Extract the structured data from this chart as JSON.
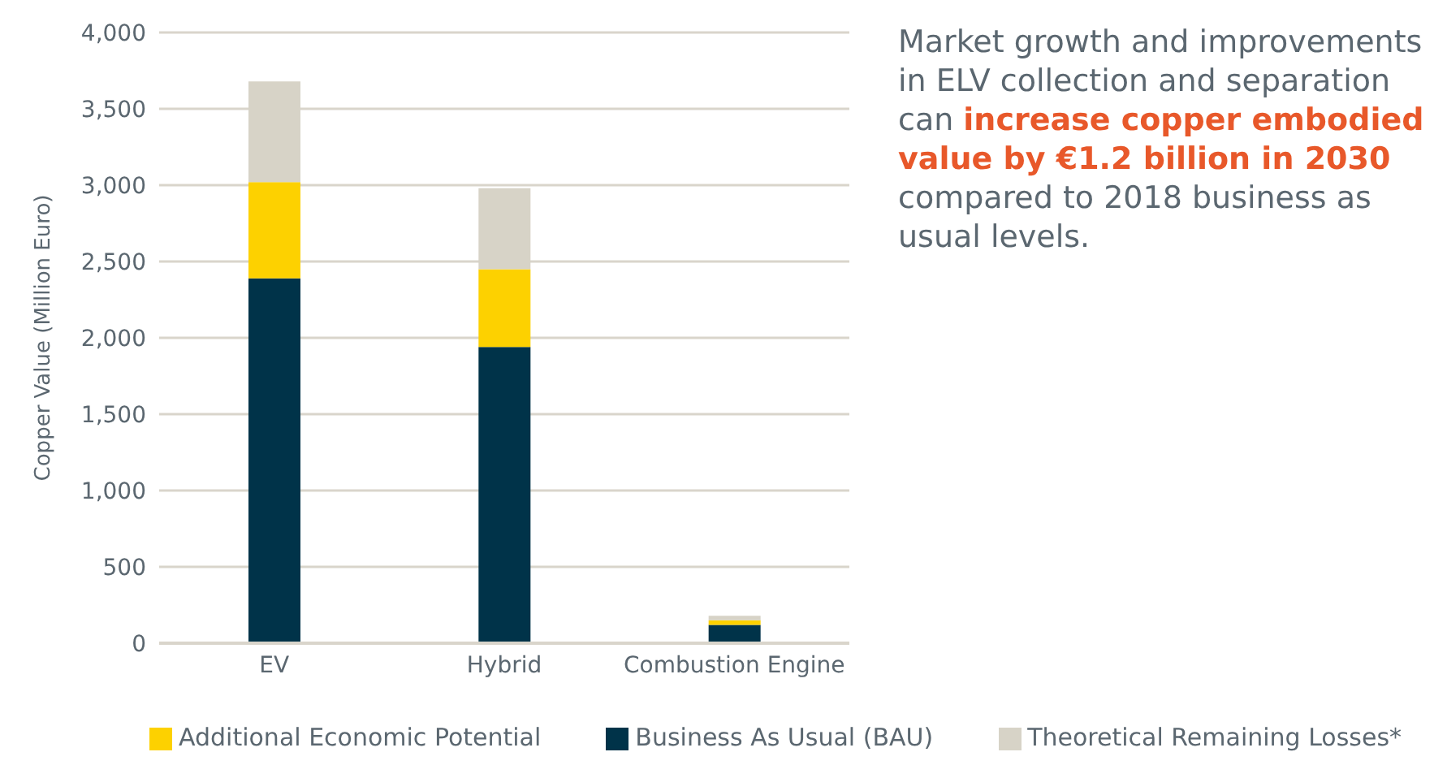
{
  "chart_data": {
    "type": "bar",
    "stacked": true,
    "ylabel": "Copper Value (Million Euro)",
    "categories": [
      "EV",
      "Hybrid",
      "Combustion Engine"
    ],
    "series": [
      {
        "name": "Business As Usual (BAU)",
        "color": "#003349",
        "values": [
          2390,
          1940,
          120
        ]
      },
      {
        "name": "Additional Economic Potential",
        "color": "#fdd100",
        "values": [
          630,
          510,
          30
        ]
      },
      {
        "name": "Theoretical Remaining Losses*",
        "color": "#d7d3c7",
        "values": [
          660,
          530,
          30
        ]
      }
    ],
    "ylim": [
      0,
      4000
    ],
    "yticks": [
      0,
      500,
      {
        "value": 1000,
        "label": "1,000"
      },
      {
        "value": 1500,
        "label": "1,500"
      },
      {
        "value": 2000,
        "label": "2,000"
      },
      {
        "value": 2500,
        "label": "2,500"
      },
      {
        "value": 3000,
        "label": "3,000"
      },
      {
        "value": 3500,
        "label": "3,500"
      },
      {
        "value": 4000,
        "label": "4,000"
      }
    ],
    "grid": "y",
    "legend": "bottom",
    "annotations": [
      "Market growth and improvements in ELV collection and separation can ",
      "increase copper embodied value by €1.2 billion in 2030",
      " compared to 2018 business as usual levels."
    ]
  }
}
